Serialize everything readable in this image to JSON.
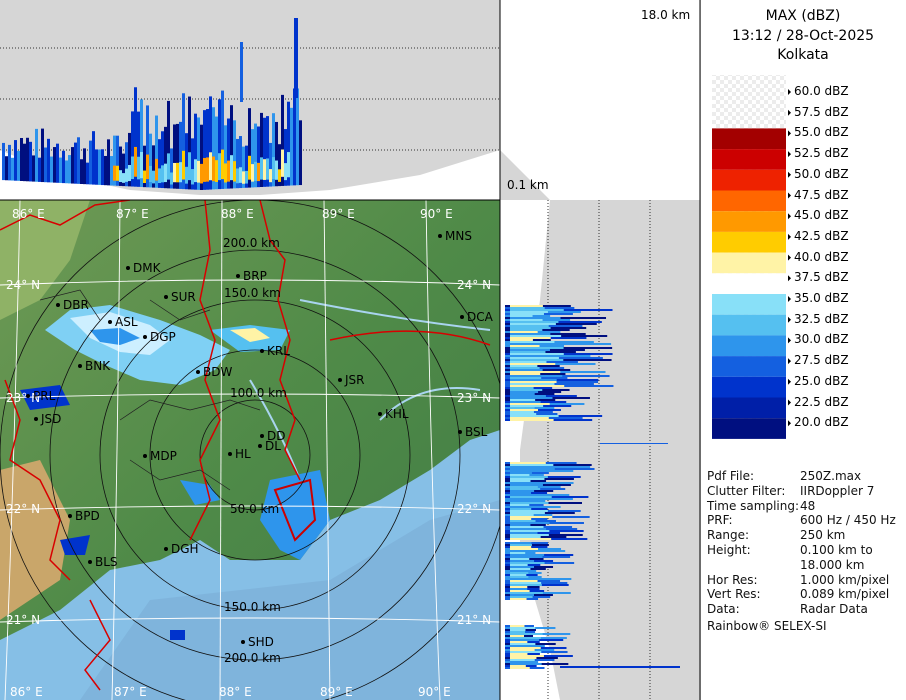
{
  "header": {
    "product": "MAX (dBZ)",
    "datetime": "13:12 / 28-Oct-2025",
    "station": "Kolkata"
  },
  "profile": {
    "top_height": "18.0 km",
    "bottom_height": "0.1 km"
  },
  "legend": {
    "entries": [
      {
        "label": "60.0 dBZ",
        "color": "checker"
      },
      {
        "label": "57.5 dBZ",
        "color": "checker"
      },
      {
        "label": "55.0 dBZ",
        "color": "#a30000"
      },
      {
        "label": "52.5 dBZ",
        "color": "#cc0000"
      },
      {
        "label": "50.0 dBZ",
        "color": "#ee2200"
      },
      {
        "label": "47.5 dBZ",
        "color": "#ff6600"
      },
      {
        "label": "45.0 dBZ",
        "color": "#ff9900"
      },
      {
        "label": "42.5 dBZ",
        "color": "#ffcc00"
      },
      {
        "label": "40.0 dBZ",
        "color": "#fff3a6"
      },
      {
        "label": "37.5 dBZ",
        "color": "#ffffff"
      },
      {
        "label": "35.0 dBZ",
        "color": "#88e0f8"
      },
      {
        "label": "32.5 dBZ",
        "color": "#55c0f0"
      },
      {
        "label": "30.0 dBZ",
        "color": "#2e95ec"
      },
      {
        "label": "27.5 dBZ",
        "color": "#1460e0"
      },
      {
        "label": "25.0 dBZ",
        "color": "#0033cc"
      },
      {
        "label": "22.5 dBZ",
        "color": "#001fa8"
      },
      {
        "label": "20.0 dBZ",
        "color": "#000f80"
      }
    ]
  },
  "info": {
    "rows": [
      {
        "key": "Pdf File:",
        "value": "250Z.max"
      },
      {
        "key": "Clutter Filter:",
        "value": "IIRDoppler 7"
      },
      {
        "key": "Time sampling:",
        "value": "48"
      },
      {
        "key": "PRF:",
        "value": "600 Hz / 450 Hz"
      },
      {
        "key": "Range:",
        "value": "250 km"
      },
      {
        "key": "Height:",
        "value": "0.100 km to"
      },
      {
        "key": "",
        "value": "18.000 km"
      },
      {
        "key": "Hor Res:",
        "value": "1.000 km/pixel"
      },
      {
        "key": "Vert Res:",
        "value": "0.089 km/pixel"
      },
      {
        "key": "Data:",
        "value": "Radar Data"
      }
    ],
    "footer": "Rainbow® SELEX-SI"
  },
  "map": {
    "lon_labels": [
      "86° E",
      "87° E",
      "88° E",
      "89° E",
      "90° E"
    ],
    "lat_labels": [
      "24° N",
      "23° N",
      "22° N",
      "21° N"
    ],
    "range_labels": [
      "50.0 km",
      "100.0 km",
      "150.0 km",
      "200.0 km"
    ],
    "cities": [
      "MNS",
      "DMK",
      "BRP",
      "SUR",
      "DBR",
      "ASL",
      "DGP",
      "KRL",
      "BNK",
      "BDW",
      "JSR",
      "DCA",
      "PRL",
      "JSD",
      "KHL",
      "BSL",
      "DD",
      "DL",
      "MDP",
      "BPD",
      "HL",
      "DGH",
      "BLS",
      "SHD"
    ]
  }
}
